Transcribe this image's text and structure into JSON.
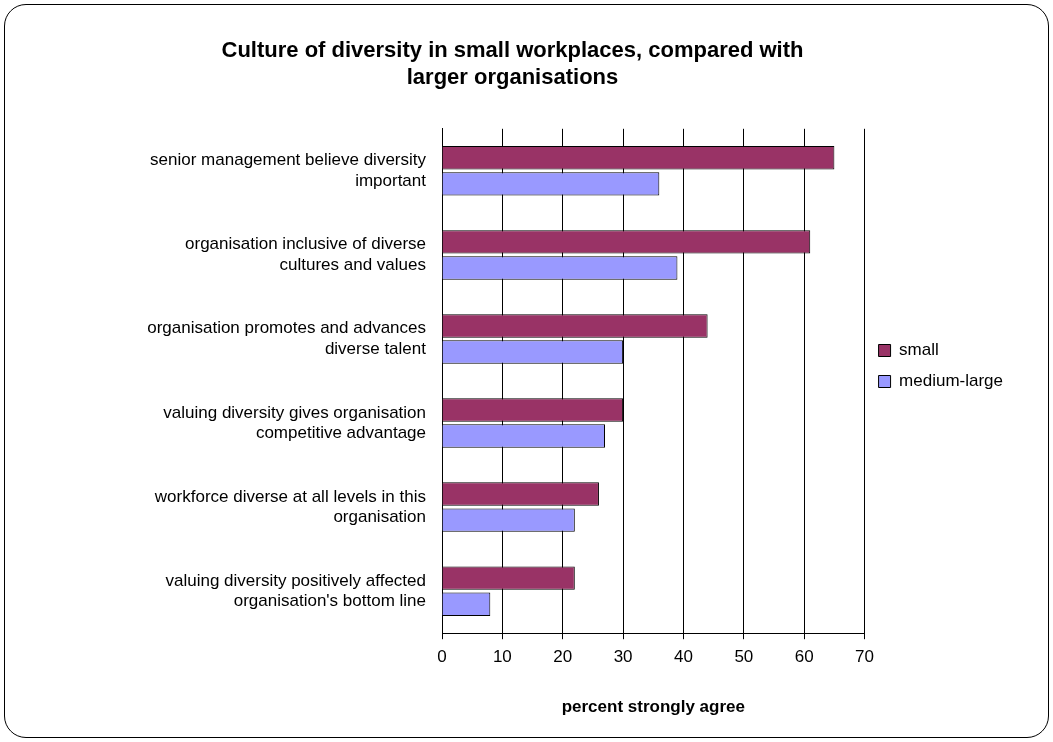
{
  "chart_data": {
    "type": "bar",
    "orientation": "horizontal",
    "title": "Culture of diversity in small workplaces, compared with larger organisations",
    "xlabel": "percent strongly agree",
    "categories": [
      "senior management believe diversity important",
      "organisation inclusive of diverse cultures and values",
      "organisation promotes and advances diverse talent",
      "valuing diversity gives organisation competitive advantage",
      "workforce diverse at all levels in this organisation",
      "valuing diversity positively affected organisation's bottom line"
    ],
    "series": [
      {
        "name": "small",
        "color": "#993366",
        "values": [
          65,
          61,
          44,
          30,
          26,
          22
        ]
      },
      {
        "name": "medium-large",
        "color": "#9999ff",
        "values": [
          36,
          39,
          30,
          27,
          22,
          8
        ]
      }
    ],
    "xlim": [
      0,
      70
    ],
    "xticks": [
      0,
      10,
      20,
      30,
      40,
      50,
      60,
      70
    ],
    "grid": "x",
    "legend": "right"
  }
}
